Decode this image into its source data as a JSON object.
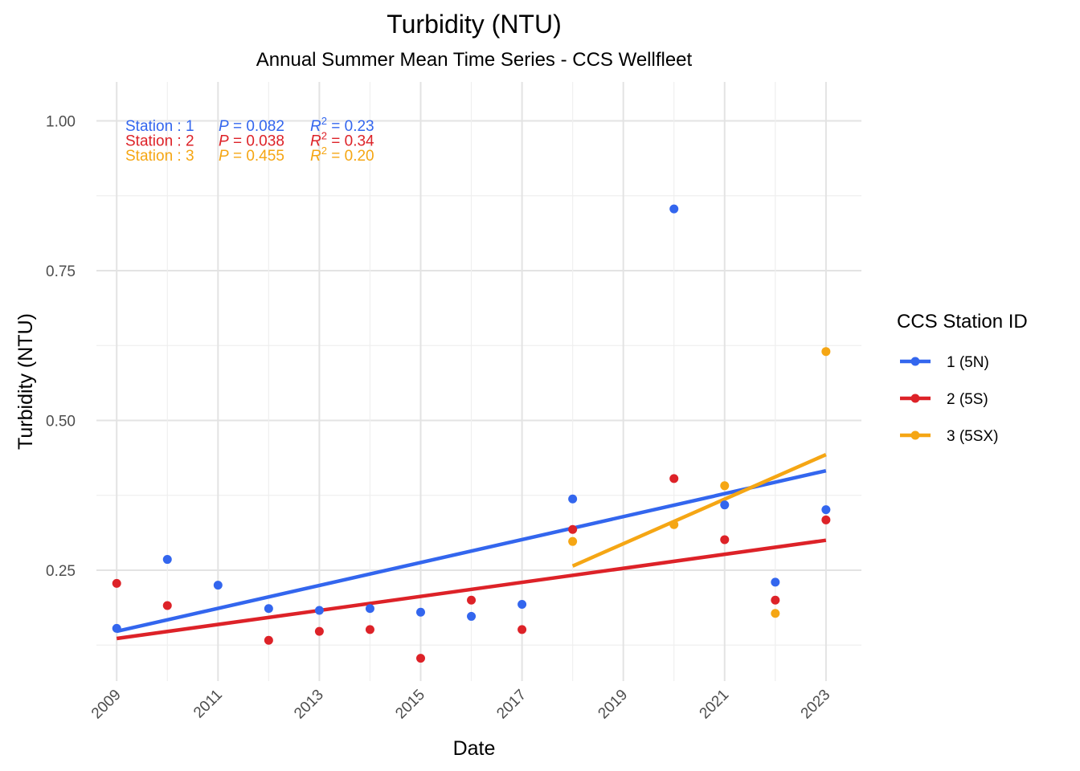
{
  "chart_data": {
    "type": "scatter",
    "title": "Turbidity (NTU)",
    "subtitle": "Annual Summer Mean Time Series - CCS Wellfleet",
    "xlabel": "Date",
    "ylabel": "Turbidity (NTU)",
    "xlim": [
      2008.6,
      2023.7
    ],
    "ylim": [
      0.065,
      1.065
    ],
    "x_ticks": [
      2009,
      2011,
      2013,
      2015,
      2017,
      2019,
      2021,
      2023
    ],
    "y_ticks": [
      0.25,
      0.5,
      0.75,
      1.0
    ],
    "y_tick_labels": [
      "0.25",
      "0.50",
      "0.75",
      "1.00"
    ],
    "grid": true,
    "legend": {
      "title": "CCS Station ID",
      "placement": "right"
    },
    "series": [
      {
        "name": "1 (5N)",
        "color": "#3366ee",
        "points": [
          {
            "x": 2009,
            "y": 0.153
          },
          {
            "x": 2010,
            "y": 0.268
          },
          {
            "x": 2011,
            "y": 0.225
          },
          {
            "x": 2012,
            "y": 0.186
          },
          {
            "x": 2013,
            "y": 0.183
          },
          {
            "x": 2014,
            "y": 0.186
          },
          {
            "x": 2015,
            "y": 0.18
          },
          {
            "x": 2016,
            "y": 0.173
          },
          {
            "x": 2017,
            "y": 0.193
          },
          {
            "x": 2018,
            "y": 0.369
          },
          {
            "x": 2020,
            "y": 0.853
          },
          {
            "x": 2021,
            "y": 0.359
          },
          {
            "x": 2022,
            "y": 0.23
          },
          {
            "x": 2023,
            "y": 0.351
          }
        ],
        "trend": [
          {
            "x": 2009,
            "y": 0.148
          },
          {
            "x": 2023,
            "y": 0.416
          }
        ]
      },
      {
        "name": "2 (5S)",
        "color": "#dd2228",
        "points": [
          {
            "x": 2009,
            "y": 0.228
          },
          {
            "x": 2010,
            "y": 0.191
          },
          {
            "x": 2012,
            "y": 0.133
          },
          {
            "x": 2013,
            "y": 0.148
          },
          {
            "x": 2014,
            "y": 0.151
          },
          {
            "x": 2015,
            "y": 0.103
          },
          {
            "x": 2016,
            "y": 0.2
          },
          {
            "x": 2017,
            "y": 0.151
          },
          {
            "x": 2018,
            "y": 0.318
          },
          {
            "x": 2020,
            "y": 0.403
          },
          {
            "x": 2021,
            "y": 0.301
          },
          {
            "x": 2022,
            "y": 0.2
          },
          {
            "x": 2023,
            "y": 0.334
          }
        ],
        "trend": [
          {
            "x": 2009,
            "y": 0.136
          },
          {
            "x": 2023,
            "y": 0.3
          }
        ]
      },
      {
        "name": "3 (5SX)",
        "color": "#f5a614",
        "points": [
          {
            "x": 2018,
            "y": 0.298
          },
          {
            "x": 2020,
            "y": 0.326
          },
          {
            "x": 2021,
            "y": 0.391
          },
          {
            "x": 2022,
            "y": 0.178
          },
          {
            "x": 2023,
            "y": 0.615
          }
        ],
        "trend": [
          {
            "x": 2018,
            "y": 0.257
          },
          {
            "x": 2023,
            "y": 0.443
          }
        ]
      }
    ],
    "annotations": [
      {
        "station": "Station : 1",
        "p_label": "P",
        "p_value": "= 0.082",
        "r_label": "R",
        "r_sup": "2",
        "r_value": "= 0.23",
        "color": "#3366ee"
      },
      {
        "station": "Station : 2",
        "p_label": "P",
        "p_value": "= 0.038",
        "r_label": "R",
        "r_sup": "2",
        "r_value": "= 0.34",
        "color": "#dd2228"
      },
      {
        "station": "Station : 3",
        "p_label": "P",
        "p_value": "= 0.455",
        "r_label": "R",
        "r_sup": "2",
        "r_value": "= 0.20",
        "color": "#f5a614"
      }
    ]
  }
}
